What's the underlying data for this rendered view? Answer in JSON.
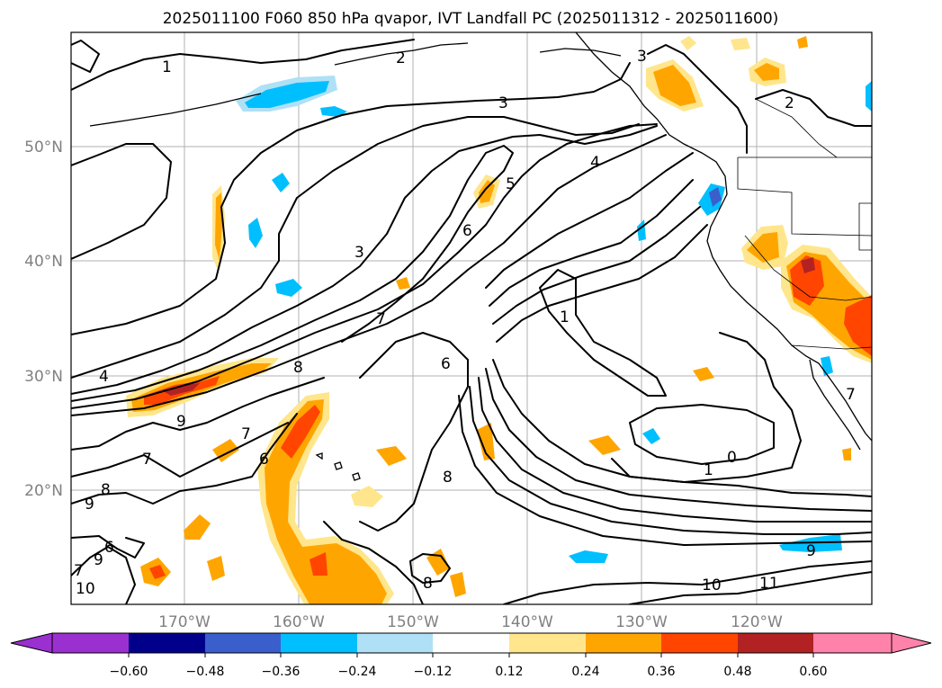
{
  "title": "2025011100 F060 850 hPa qvapor, IVT Landfall PC (2025011312 - 2025011600)",
  "lat_ticks": [
    "20°N",
    "30°N",
    "40°N",
    "50°N"
  ],
  "lon_ticks": [
    "170°W",
    "160°W",
    "150°W",
    "140°W",
    "130°W",
    "120°W"
  ],
  "colorbar": {
    "ticks": [
      "−0.60",
      "−0.48",
      "−0.36",
      "−0.24",
      "−0.12",
      "0.12",
      "0.24",
      "0.36",
      "0.48",
      "0.60"
    ],
    "colors": [
      "#9b30d0",
      "#00008b",
      "#3a5fcd",
      "#00bfff",
      "#afe0f5",
      "#ffffff",
      "#ffe68c",
      "#ffa500",
      "#ff4500",
      "#b22222",
      "#ff82ab"
    ]
  },
  "contour_labels": [
    "1",
    "2",
    "3",
    "3",
    "2",
    "4",
    "5",
    "6",
    "3",
    "7",
    "4",
    "8",
    "9",
    "7",
    "6",
    "9",
    "8",
    "7",
    "6",
    "7",
    "1",
    "0",
    "1",
    "8",
    "9",
    "10",
    "11",
    "8",
    "7",
    "9",
    "10",
    "6"
  ]
}
